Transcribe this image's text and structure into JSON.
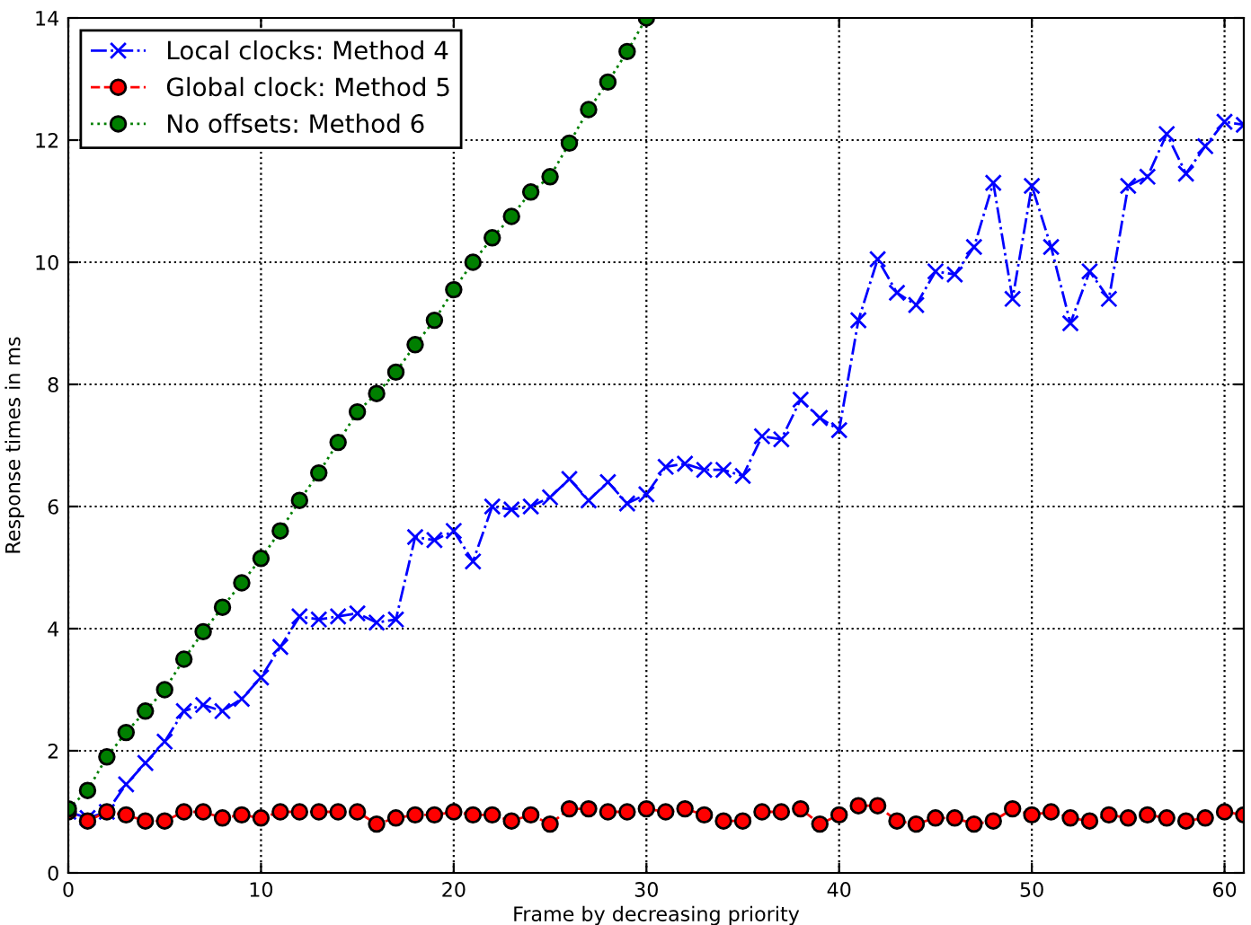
{
  "chart_data": {
    "type": "line",
    "xlabel": "Frame by decreasing priority",
    "ylabel": "Response times in ms",
    "xlim": [
      0,
      61
    ],
    "ylim": [
      0,
      14
    ],
    "xticks": [
      0,
      10,
      20,
      30,
      40,
      50,
      60
    ],
    "yticks": [
      0,
      2,
      4,
      6,
      8,
      10,
      12,
      14
    ],
    "grid": true,
    "legend": "top left",
    "series": [
      {
        "name": "Local clocks: Method 4",
        "color": "#0000ff",
        "marker": "cross",
        "line_style": "dashdot",
        "x": [
          0,
          1,
          2,
          3,
          4,
          5,
          6,
          7,
          8,
          9,
          10,
          11,
          12,
          13,
          14,
          15,
          16,
          17,
          18,
          19,
          20,
          21,
          22,
          23,
          24,
          25,
          26,
          27,
          28,
          29,
          30,
          31,
          32,
          33,
          34,
          35,
          36,
          37,
          38,
          39,
          40,
          41,
          42,
          43,
          44,
          45,
          46,
          47,
          48,
          49,
          50,
          51,
          52,
          53,
          54,
          55,
          56,
          57,
          58,
          59,
          60,
          61
        ],
        "values": [
          1.0,
          0.9,
          1.0,
          1.45,
          1.8,
          2.15,
          2.65,
          2.75,
          2.65,
          2.85,
          3.2,
          3.7,
          4.2,
          4.15,
          4.2,
          4.25,
          4.1,
          4.15,
          5.5,
          5.45,
          5.6,
          5.1,
          6.0,
          5.95,
          6.0,
          6.15,
          6.45,
          6.1,
          6.4,
          6.05,
          6.2,
          6.65,
          6.7,
          6.6,
          6.6,
          6.5,
          7.15,
          7.1,
          7.75,
          7.45,
          7.25,
          9.05,
          10.05,
          9.5,
          9.3,
          9.85,
          9.8,
          10.25,
          11.3,
          9.4,
          11.25,
          10.25,
          9.0,
          9.85,
          9.4,
          11.25,
          11.4,
          12.1,
          11.45,
          11.9,
          12.3,
          12.25
        ]
      },
      {
        "name": "Global clock: Method 5",
        "color": "#ff0000",
        "marker": "circle",
        "line_style": "dashed",
        "x": [
          0,
          1,
          2,
          3,
          4,
          5,
          6,
          7,
          8,
          9,
          10,
          11,
          12,
          13,
          14,
          15,
          16,
          17,
          18,
          19,
          20,
          21,
          22,
          23,
          24,
          25,
          26,
          27,
          28,
          29,
          30,
          31,
          32,
          33,
          34,
          35,
          36,
          37,
          38,
          39,
          40,
          41,
          42,
          43,
          44,
          45,
          46,
          47,
          48,
          49,
          50,
          51,
          52,
          53,
          54,
          55,
          56,
          57,
          58,
          59,
          60,
          61
        ],
        "values": [
          1.0,
          0.85,
          1.0,
          0.95,
          0.85,
          0.85,
          1.0,
          1.0,
          0.9,
          0.95,
          0.9,
          1.0,
          1.0,
          1.0,
          1.0,
          1.0,
          0.8,
          0.9,
          0.95,
          0.95,
          1.0,
          0.95,
          0.95,
          0.85,
          0.95,
          0.8,
          1.05,
          1.05,
          1.0,
          1.0,
          1.05,
          1.0,
          1.05,
          0.95,
          0.85,
          0.85,
          1.0,
          1.0,
          1.05,
          0.8,
          0.95,
          1.1,
          1.1,
          0.85,
          0.8,
          0.9,
          0.9,
          0.8,
          0.85,
          1.05,
          0.95,
          1.0,
          0.9,
          0.85,
          0.95,
          0.9,
          0.95,
          0.9,
          0.85,
          0.9,
          1.0,
          0.95
        ]
      },
      {
        "name": "No offsets: Method 6",
        "color": "#007f00",
        "marker": "circle",
        "line_style": "dotted",
        "x": [
          0,
          1,
          2,
          3,
          4,
          5,
          6,
          7,
          8,
          9,
          10,
          11,
          12,
          13,
          14,
          15,
          16,
          17,
          18,
          19,
          20,
          21,
          22,
          23,
          24,
          25,
          26,
          27,
          28,
          29,
          30
        ],
        "values": [
          1.05,
          1.35,
          1.9,
          2.3,
          2.65,
          3.0,
          3.5,
          3.95,
          4.35,
          4.75,
          5.15,
          5.6,
          6.1,
          6.55,
          7.05,
          7.55,
          7.85,
          8.2,
          8.65,
          9.05,
          9.55,
          10.0,
          10.4,
          10.75,
          11.15,
          11.4,
          11.95,
          12.5,
          12.95,
          13.45,
          14.0
        ]
      }
    ]
  }
}
